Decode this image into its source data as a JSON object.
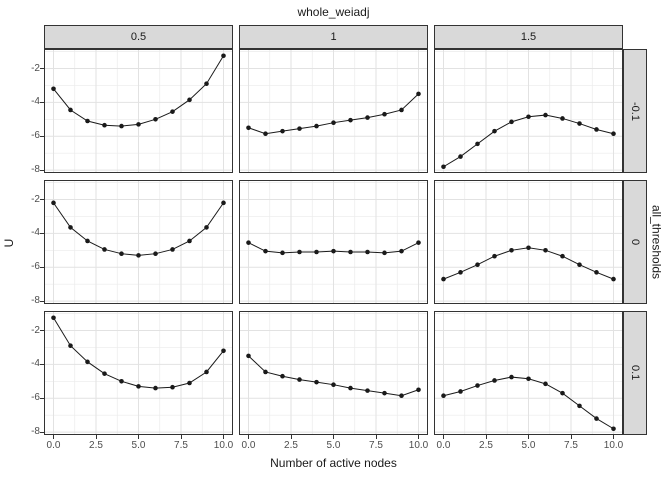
{
  "figure": {
    "top_facet_title": "whole_weiadj",
    "right_facet_title": "all_thresholds",
    "xlabel": "Number of active nodes",
    "ylabel": "U"
  },
  "chart_data": {
    "type": "line",
    "title": "whole_weiadj",
    "xlabel": "Number of active nodes",
    "ylabel": "U",
    "facet": {
      "col_var": "whole_weiadj",
      "col_levels": [
        "0.5",
        "1",
        "1.5"
      ],
      "row_var": "all_thresholds",
      "row_levels": [
        "-0.1",
        "0",
        "0.1"
      ]
    },
    "x": [
      0,
      1,
      2,
      3,
      4,
      5,
      6,
      7,
      8,
      9,
      10
    ],
    "xticks": [
      "0.0",
      "2.5",
      "5.0",
      "7.5",
      "10.0"
    ],
    "xtick_values": [
      0,
      2.5,
      5,
      7.5,
      10
    ],
    "yticks": [
      "-2",
      "-4",
      "-6",
      "-8"
    ],
    "ytick_values": [
      -2,
      -4,
      -6,
      -8
    ],
    "xlim": [
      -0.5,
      10.5
    ],
    "ylim": [
      -8.11,
      -0.91
    ],
    "grid": true,
    "grid_minor_x": [
      1.25,
      3.75,
      6.25,
      8.75
    ],
    "grid_minor_y": [
      -1,
      -3,
      -5,
      -7
    ],
    "legend": "none",
    "panels": [
      {
        "row": "-0.1",
        "col": "0.5",
        "y": [
          -3.2,
          -4.45,
          -5.1,
          -5.35,
          -5.4,
          -5.3,
          -5.0,
          -4.55,
          -3.85,
          -2.9,
          -1.25
        ]
      },
      {
        "row": "-0.1",
        "col": "1",
        "y": [
          -5.5,
          -5.85,
          -5.7,
          -5.55,
          -5.4,
          -5.2,
          -5.05,
          -4.9,
          -4.7,
          -4.45,
          -3.5
        ]
      },
      {
        "row": "-0.1",
        "col": "1.5",
        "y": [
          -7.8,
          -7.2,
          -6.45,
          -5.7,
          -5.15,
          -4.85,
          -4.75,
          -4.95,
          -5.25,
          -5.6,
          -5.85
        ]
      },
      {
        "row": "0",
        "col": "0.5",
        "y": [
          -2.2,
          -3.65,
          -4.45,
          -4.95,
          -5.2,
          -5.3,
          -5.2,
          -4.95,
          -4.45,
          -3.65,
          -2.2
        ]
      },
      {
        "row": "0",
        "col": "1",
        "y": [
          -4.55,
          -5.05,
          -5.15,
          -5.1,
          -5.1,
          -5.05,
          -5.1,
          -5.1,
          -5.15,
          -5.05,
          -4.55
        ]
      },
      {
        "row": "0",
        "col": "1.5",
        "y": [
          -6.7,
          -6.3,
          -5.85,
          -5.35,
          -5.0,
          -4.85,
          -5.0,
          -5.35,
          -5.85,
          -6.3,
          -6.7
        ]
      },
      {
        "row": "0.1",
        "col": "0.5",
        "y": [
          -1.25,
          -2.9,
          -3.85,
          -4.55,
          -5.0,
          -5.3,
          -5.4,
          -5.35,
          -5.1,
          -4.45,
          -3.2
        ]
      },
      {
        "row": "0.1",
        "col": "1",
        "y": [
          -3.5,
          -4.45,
          -4.7,
          -4.9,
          -5.05,
          -5.2,
          -5.4,
          -5.55,
          -5.7,
          -5.85,
          -5.5
        ]
      },
      {
        "row": "0.1",
        "col": "1.5",
        "y": [
          -5.85,
          -5.6,
          -5.25,
          -4.95,
          -4.75,
          -4.85,
          -5.15,
          -5.7,
          -6.45,
          -7.2,
          -7.8
        ]
      }
    ],
    "colors": {
      "strip_fill": "#d9d9d9",
      "strip_border": "#333333",
      "panel_border": "#333333",
      "grid_major": "#e2e2e2",
      "grid_minor": "#ebebeb",
      "line": "#1a1a1a",
      "point": "#1a1a1a",
      "axis_text": "#4d4d4d",
      "title_text": "#1a1a1a"
    }
  }
}
